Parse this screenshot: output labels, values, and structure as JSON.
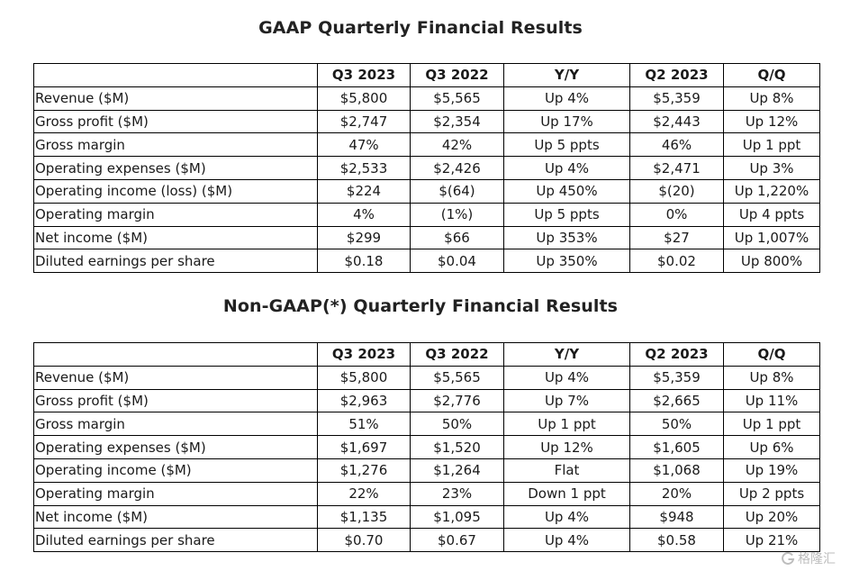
{
  "gaap": {
    "title": "GAAP Quarterly Financial Results",
    "headers": [
      "",
      "Q3 2023",
      "Q3 2022",
      "Y/Y",
      "Q2 2023",
      "Q/Q"
    ],
    "rows": [
      [
        "Revenue ($M)",
        "$5,800",
        "$5,565",
        "Up 4%",
        "$5,359",
        "Up 8%"
      ],
      [
        "Gross profit ($M)",
        "$2,747",
        "$2,354",
        "Up 17%",
        "$2,443",
        "Up 12%"
      ],
      [
        "Gross margin",
        "47%",
        "42%",
        "Up 5 ppts",
        "46%",
        "Up 1 ppt"
      ],
      [
        "Operating expenses ($M)",
        "$2,533",
        "$2,426",
        "Up 4%",
        "$2,471",
        "Up 3%"
      ],
      [
        "Operating income (loss) ($M)",
        "$224",
        "$(64)",
        "Up 450%",
        "$(20)",
        "Up 1,220%"
      ],
      [
        "Operating margin",
        "4%",
        "(1%)",
        "Up 5 ppts",
        "0%",
        "Up 4 ppts"
      ],
      [
        "Net income ($M)",
        "$299",
        "$66",
        "Up 353%",
        "$27",
        "Up 1,007%"
      ],
      [
        "Diluted earnings per share",
        "$0.18",
        "$0.04",
        "Up 350%",
        "$0.02",
        "Up 800%"
      ]
    ]
  },
  "non_gaap": {
    "title": "Non-GAAP(*) Quarterly Financial Results",
    "headers": [
      "",
      "Q3 2023",
      "Q3 2022",
      "Y/Y",
      "Q2 2023",
      "Q/Q"
    ],
    "rows": [
      [
        "Revenue ($M)",
        "$5,800",
        "$5,565",
        "Up 4%",
        "$5,359",
        "Up 8%"
      ],
      [
        "Gross profit ($M)",
        "$2,963",
        "$2,776",
        "Up 7%",
        "$2,665",
        "Up 11%"
      ],
      [
        "Gross margin",
        "51%",
        "50%",
        "Up 1 ppt",
        "50%",
        "Up 1 ppt"
      ],
      [
        "Operating expenses ($M)",
        "$1,697",
        "$1,520",
        "Up 12%",
        "$1,605",
        "Up 6%"
      ],
      [
        "Operating income ($M)",
        "$1,276",
        "$1,264",
        "Flat",
        "$1,068",
        "Up 19%"
      ],
      [
        "Operating margin",
        "22%",
        "23%",
        "Down 1 ppt",
        "20%",
        "Up 2 ppts"
      ],
      [
        "Net income ($M)",
        "$1,135",
        "$1,095",
        "Up 4%",
        "$948",
        "Up 20%"
      ],
      [
        "Diluted earnings per share",
        "$0.70",
        "$0.67",
        "Up 4%",
        "$0.58",
        "Up 21%"
      ]
    ]
  },
  "watermark": {
    "text": "格隆汇",
    "icon": "watermark-logo-icon",
    "color": "#bdbdbd"
  }
}
